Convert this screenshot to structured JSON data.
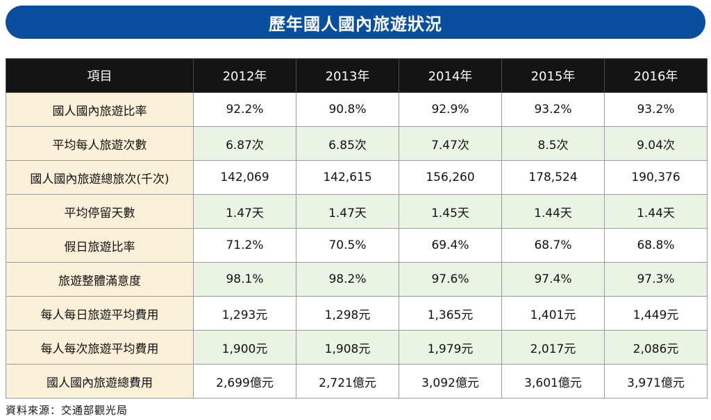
{
  "title": "歷年國人國內旅遊狀況",
  "table": {
    "headers": [
      "項目",
      "2012年",
      "2013年",
      "2014年",
      "2015年",
      "2016年"
    ],
    "rows": [
      {
        "label": "國人國內旅遊比率",
        "values": [
          "92.2%",
          "90.8%",
          "92.9%",
          "93.2%",
          "93.2%"
        ]
      },
      {
        "label": "平均每人旅遊次數",
        "values": [
          "6.87次",
          "6.85次",
          "7.47次",
          "8.5次",
          "9.04次"
        ]
      },
      {
        "label": "國人國內旅遊總旅次(千次)",
        "values": [
          "142,069",
          "142,615",
          "156,260",
          "178,524",
          "190,376"
        ]
      },
      {
        "label": "平均停留天數",
        "values": [
          "1.47天",
          "1.47天",
          "1.45天",
          "1.44天",
          "1.44天"
        ]
      },
      {
        "label": "假日旅遊比率",
        "values": [
          "71.2%",
          "70.5%",
          "69.4%",
          "68.7%",
          "68.8%"
        ]
      },
      {
        "label": "旅遊整體滿意度",
        "values": [
          "98.1%",
          "98.2%",
          "97.6%",
          "97.4%",
          "97.3%"
        ]
      },
      {
        "label": "每人每日旅遊平均費用",
        "values": [
          "1,293元",
          "1,298元",
          "1,365元",
          "1,401元",
          "1,449元"
        ]
      },
      {
        "label": "每人每次旅遊平均費用",
        "values": [
          "1,900元",
          "1,908元",
          "1,979元",
          "2,017元",
          "2,086元"
        ]
      },
      {
        "label": "國人國內旅遊總費用",
        "values": [
          "2,699億元",
          "2,721億元",
          "3,092億元",
          "3,601億元",
          "3,971億元"
        ]
      }
    ]
  },
  "source": "資料來源：交通部觀光局",
  "colors": {
    "title_bar": "#0a4f9e",
    "header_bg": "#141414",
    "label_bg": "#fbf0d8",
    "alt_row_bg": "#e9f4e4"
  }
}
